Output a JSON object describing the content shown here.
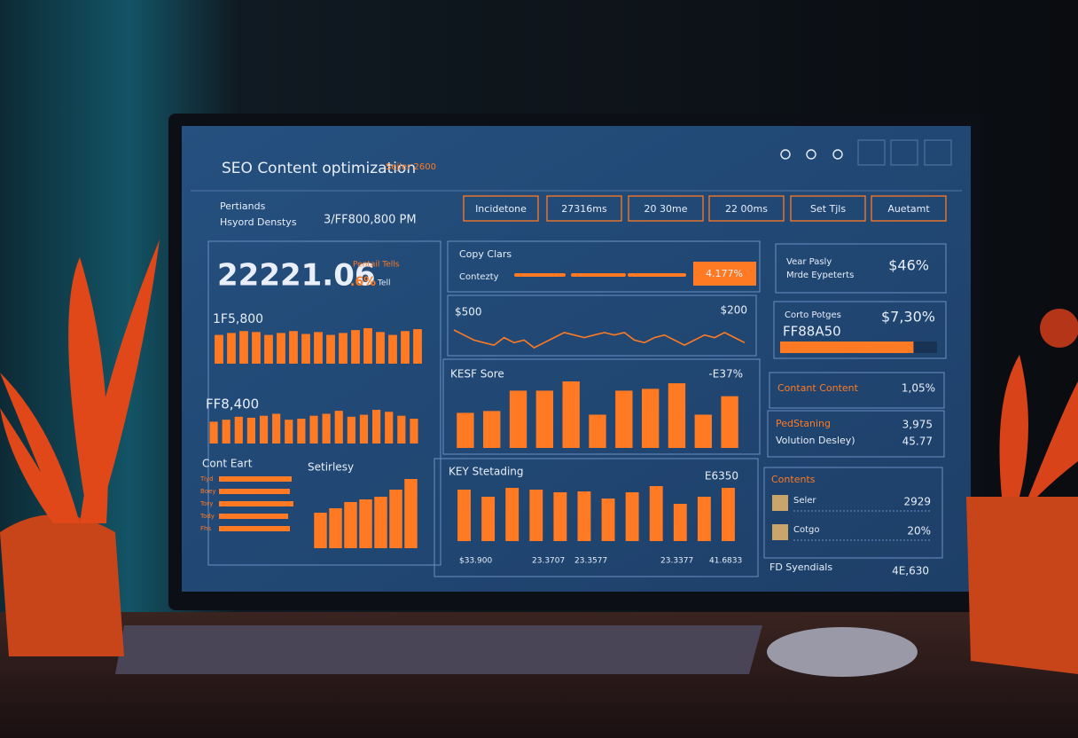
{
  "header": {
    "title": "SEO Content optimization",
    "subtitle": "Sejler 2600"
  },
  "tabs": [
    "Incidetone",
    "27316ms",
    "20 30me",
    "22 00ms",
    "Set Tjls",
    "Auetamt"
  ],
  "left": {
    "label1": "Pertiands",
    "label2": "Hsyord Denstys",
    "note": "3/FF800,800 PM",
    "big": "22221.06",
    "big_sub": "Pentail Tells",
    "big_pct": ".6%",
    "big_unit": "Tell",
    "chart1": {
      "title": "1F5,800",
      "values": [
        30,
        32,
        34,
        33,
        30,
        32,
        34,
        31,
        33,
        30,
        32,
        35,
        37,
        33,
        30,
        34,
        36
      ]
    },
    "chart2": {
      "title": "FF8,400",
      "values": [
        22,
        24,
        27,
        26,
        28,
        30,
        24,
        25,
        28,
        30,
        33,
        27,
        29,
        34,
        32,
        28,
        25
      ]
    },
    "list": {
      "title": "Cont Eart",
      "labels": [
        "Tiyd",
        "Boey",
        "Tory",
        "Tody",
        "Fhs"
      ],
      "values": [
        82,
        80,
        84,
        78,
        80
      ]
    },
    "chart3": {
      "title": "Setirlesy",
      "values": [
        40,
        45,
        52,
        55,
        58,
        66,
        78
      ]
    }
  },
  "middle": {
    "copy": "Copy Clars",
    "contenty": "Contezty",
    "badge": "4.177%",
    "progress": [
      58,
      62,
      66
    ],
    "line": {
      "left_label": "$500",
      "right_label": "$200",
      "values": [
        14,
        12,
        10,
        9,
        8,
        11,
        9,
        10,
        7,
        9,
        11,
        13,
        12,
        11,
        12,
        13,
        12,
        13,
        10,
        9,
        11,
        12,
        10,
        8,
        10,
        12,
        11,
        13,
        11,
        9
      ]
    },
    "kesf": {
      "title": "KESF Sore",
      "value": "-E37%",
      "values": [
        38,
        40,
        62,
        62,
        72,
        36,
        62,
        64,
        70,
        36,
        56
      ]
    },
    "key": {
      "title": "KEY Stetading",
      "value": "E6350",
      "values": [
        58,
        50,
        60,
        58,
        55,
        56,
        48,
        55,
        62,
        42,
        50,
        60
      ],
      "labels": [
        "$33.900",
        "23.3707",
        "23.3577",
        "23.3377",
        "41.6833"
      ]
    }
  },
  "right": {
    "card1": {
      "label1": "Vear Pasly",
      "label2": "Mrde Eypeterts",
      "value": "$46%"
    },
    "card2": {
      "label": "Corto Potges",
      "code": "FF88A50",
      "value": "$7,30%",
      "progress": 85
    },
    "card3": {
      "label": "Contant Content",
      "value": "1,05%"
    },
    "card4": {
      "label1": "PedStaning",
      "value1": "3,975",
      "label2": "Volution Desley)",
      "value2": "45.77"
    },
    "card5": {
      "title": "Contents",
      "items": [
        {
          "label": "Seler",
          "value": "2929"
        },
        {
          "label": "Cotgo",
          "value": "20%"
        }
      ]
    },
    "footer": {
      "label": "FD Syendials",
      "value": "4E,630"
    }
  }
}
